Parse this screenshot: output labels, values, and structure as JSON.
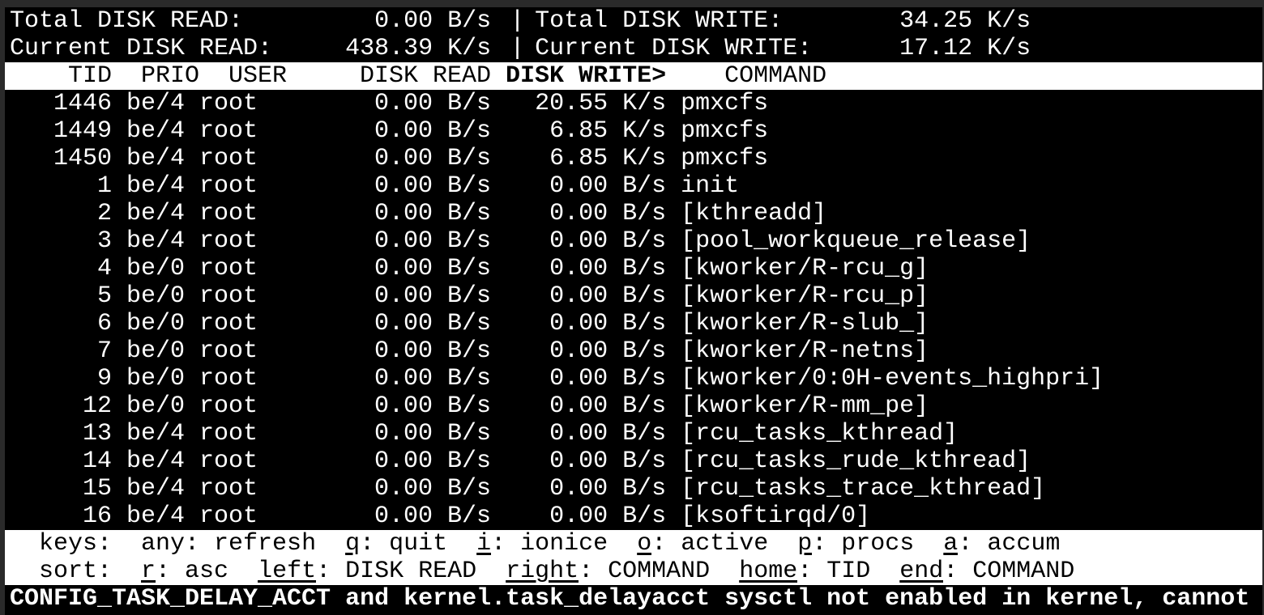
{
  "summary": {
    "total_read_label": "Total DISK READ:",
    "total_read": "0.00 B/s",
    "total_write_label": "Total DISK WRITE:",
    "total_write": "34.25 K/s",
    "current_read_label": "Current DISK READ:",
    "current_read": "438.39 K/s",
    "current_write_label": "Current DISK WRITE:",
    "current_write": "17.12 K/s",
    "separator": "|"
  },
  "columns": {
    "tid": "TID",
    "prio": "PRIO",
    "user": "USER",
    "read": "DISK READ",
    "write": "DISK WRITE>",
    "command": "COMMAND"
  },
  "rows": [
    {
      "tid": "1446",
      "prio": "be/4",
      "user": "root",
      "read": "0.00 B/s",
      "write": "20.55 K/s",
      "command": "pmxcfs"
    },
    {
      "tid": "1449",
      "prio": "be/4",
      "user": "root",
      "read": "0.00 B/s",
      "write": "6.85 K/s",
      "command": "pmxcfs"
    },
    {
      "tid": "1450",
      "prio": "be/4",
      "user": "root",
      "read": "0.00 B/s",
      "write": "6.85 K/s",
      "command": "pmxcfs"
    },
    {
      "tid": "1",
      "prio": "be/4",
      "user": "root",
      "read": "0.00 B/s",
      "write": "0.00 B/s",
      "command": "init"
    },
    {
      "tid": "2",
      "prio": "be/4",
      "user": "root",
      "read": "0.00 B/s",
      "write": "0.00 B/s",
      "command": "[kthreadd]"
    },
    {
      "tid": "3",
      "prio": "be/4",
      "user": "root",
      "read": "0.00 B/s",
      "write": "0.00 B/s",
      "command": "[pool_workqueue_release]"
    },
    {
      "tid": "4",
      "prio": "be/0",
      "user": "root",
      "read": "0.00 B/s",
      "write": "0.00 B/s",
      "command": "[kworker/R-rcu_g]"
    },
    {
      "tid": "5",
      "prio": "be/0",
      "user": "root",
      "read": "0.00 B/s",
      "write": "0.00 B/s",
      "command": "[kworker/R-rcu_p]"
    },
    {
      "tid": "6",
      "prio": "be/0",
      "user": "root",
      "read": "0.00 B/s",
      "write": "0.00 B/s",
      "command": "[kworker/R-slub_]"
    },
    {
      "tid": "7",
      "prio": "be/0",
      "user": "root",
      "read": "0.00 B/s",
      "write": "0.00 B/s",
      "command": "[kworker/R-netns]"
    },
    {
      "tid": "9",
      "prio": "be/0",
      "user": "root",
      "read": "0.00 B/s",
      "write": "0.00 B/s",
      "command": "[kworker/0:0H-events_highpri]"
    },
    {
      "tid": "12",
      "prio": "be/0",
      "user": "root",
      "read": "0.00 B/s",
      "write": "0.00 B/s",
      "command": "[kworker/R-mm_pe]"
    },
    {
      "tid": "13",
      "prio": "be/4",
      "user": "root",
      "read": "0.00 B/s",
      "write": "0.00 B/s",
      "command": "[rcu_tasks_kthread]"
    },
    {
      "tid": "14",
      "prio": "be/4",
      "user": "root",
      "read": "0.00 B/s",
      "write": "0.00 B/s",
      "command": "[rcu_tasks_rude_kthread]"
    },
    {
      "tid": "15",
      "prio": "be/4",
      "user": "root",
      "read": "0.00 B/s",
      "write": "0.00 B/s",
      "command": "[rcu_tasks_trace_kthread]"
    },
    {
      "tid": "16",
      "prio": "be/4",
      "user": "root",
      "read": "0.00 B/s",
      "write": "0.00 B/s",
      "command": "[ksoftirqd/0]"
    }
  ],
  "footer": {
    "keys_label": "keys:",
    "keys": [
      {
        "key": "any",
        "label": "refresh",
        "underline": false
      },
      {
        "key": "q",
        "label": "quit",
        "underline": true
      },
      {
        "key": "i",
        "label": "ionice",
        "underline": true
      },
      {
        "key": "o",
        "label": "active",
        "underline": true
      },
      {
        "key": "p",
        "label": "procs",
        "underline": true
      },
      {
        "key": "a",
        "label": "accum",
        "underline": true
      }
    ],
    "sort_label": "sort:",
    "sort": [
      {
        "key": "r",
        "label": "asc",
        "underline": true
      },
      {
        "key": "left",
        "label": "DISK READ",
        "underline": true
      },
      {
        "key": "right",
        "label": "COMMAND",
        "underline": true
      },
      {
        "key": "home",
        "label": "TID",
        "underline": true
      },
      {
        "key": "end",
        "label": "COMMAND",
        "underline": true
      }
    ]
  },
  "warning": "CONFIG_TASK_DELAY_ACCT and kernel.task_delayacct sysctl not enabled in kernel, cannot"
}
